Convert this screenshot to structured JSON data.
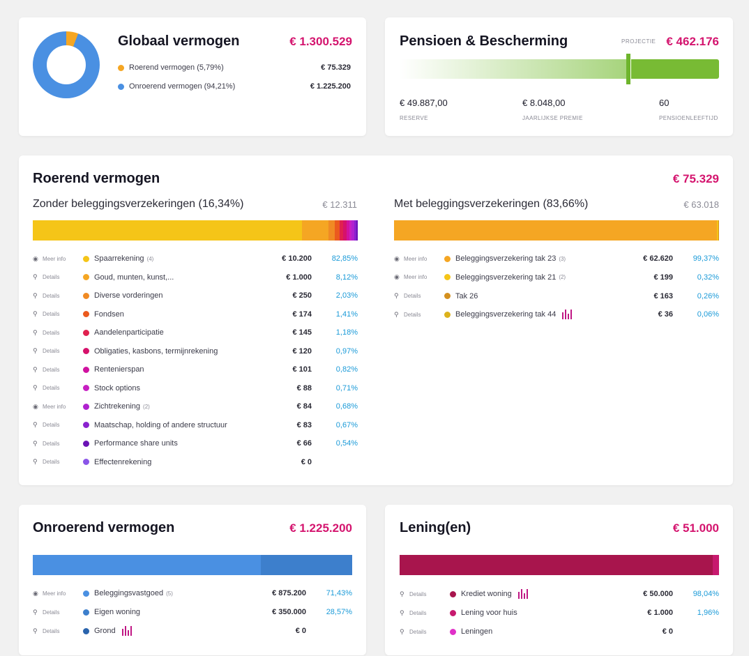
{
  "globaal": {
    "title": "Globaal vermogen",
    "total": "€ 1.300.529",
    "items": [
      {
        "label": "Roerend vermogen (5,79%)",
        "value": "€ 75.329",
        "color": "#f5a623",
        "share": 5.79
      },
      {
        "label": "Onroerend vermogen (94,21%)",
        "value": "€ 1.225.200",
        "color": "#4a90e2",
        "share": 94.21
      }
    ]
  },
  "pensioen": {
    "title": "Pensioen & Bescherming",
    "projectie_label": "PROJECTIE",
    "projectie_value": "€ 462.176",
    "stats": [
      {
        "value": "€ 49.887,00",
        "label": "RESERVE"
      },
      {
        "value": "€ 8.048,00",
        "label": "JAARLIJKSE PREMIE"
      },
      {
        "value": "60",
        "label": "PENSIOENLEEFTIJD"
      }
    ]
  },
  "roerend": {
    "title": "Roerend vermogen",
    "total": "€ 75.329",
    "zonder": {
      "title": "Zonder beleggingsverzekeringen (16,34%)",
      "total": "€ 12.311",
      "rows": [
        {
          "action": "Meer info",
          "icon": "eye-icon",
          "color": "#f5c518",
          "name": "Spaarrekening",
          "count": "(4)",
          "amount": "€ 10.200",
          "pct": "82,85%",
          "share": 82.85
        },
        {
          "action": "Details",
          "icon": "link-icon",
          "color": "#f5a623",
          "name": "Goud, munten, kunst,...",
          "count": "",
          "amount": "€ 1.000",
          "pct": "8,12%",
          "share": 8.12
        },
        {
          "action": "Details",
          "icon": "link-icon",
          "color": "#f08a24",
          "name": "Diverse vorderingen",
          "count": "",
          "amount": "€ 250",
          "pct": "2,03%",
          "share": 2.03
        },
        {
          "action": "Details",
          "icon": "link-icon",
          "color": "#eb5a1e",
          "name": "Fondsen",
          "count": "",
          "amount": "€ 174",
          "pct": "1,41%",
          "share": 1.41
        },
        {
          "action": "Details",
          "icon": "link-icon",
          "color": "#e0214f",
          "name": "Aandelenparticipatie",
          "count": "",
          "amount": "€ 145",
          "pct": "1,18%",
          "share": 1.18
        },
        {
          "action": "Details",
          "icon": "link-icon",
          "color": "#d6116b",
          "name": "Obligaties, kasbons, termijnrekening",
          "count": "",
          "amount": "€ 120",
          "pct": "0,97%",
          "share": 0.97
        },
        {
          "action": "Details",
          "icon": "link-icon",
          "color": "#d012a0",
          "name": "Rentenierspan",
          "count": "",
          "amount": "€ 101",
          "pct": "0,82%",
          "share": 0.82
        },
        {
          "action": "Details",
          "icon": "link-icon",
          "color": "#c71fc2",
          "name": "Stock options",
          "count": "",
          "amount": "€ 88",
          "pct": "0,71%",
          "share": 0.71
        },
        {
          "action": "Meer info",
          "icon": "eye-icon",
          "color": "#b022cf",
          "name": "Zichtrekening",
          "count": "(2)",
          "amount": "€ 84",
          "pct": "0,68%",
          "share": 0.68
        },
        {
          "action": "Details",
          "icon": "link-icon",
          "color": "#8a22cf",
          "name": "Maatschap, holding of andere structuur",
          "count": "",
          "amount": "€ 83",
          "pct": "0,67%",
          "share": 0.67
        },
        {
          "action": "Details",
          "icon": "link-icon",
          "color": "#6a12b5",
          "name": "Performance share units",
          "count": "",
          "amount": "€ 66",
          "pct": "0,54%",
          "share": 0.54
        },
        {
          "action": "Details",
          "icon": "link-icon",
          "color": "#8a55e8",
          "name": "Effectenrekening",
          "count": "",
          "amount": "€ 0",
          "pct": "",
          "share": 0
        }
      ]
    },
    "met": {
      "title": "Met beleggingsverzekeringen (83,66%)",
      "total": "€ 63.018",
      "rows": [
        {
          "action": "Meer info",
          "icon": "eye-icon",
          "color": "#f5a623",
          "name": "Beleggingsverzekering tak 23",
          "count": "(3)",
          "amount": "€ 62.620",
          "pct": "99,37%",
          "share": 99.37,
          "spark": false
        },
        {
          "action": "Meer info",
          "icon": "eye-icon",
          "color": "#f5c518",
          "name": "Beleggingsverzekering tak 21",
          "count": "(2)",
          "amount": "€ 199",
          "pct": "0,32%",
          "share": 0.32,
          "spark": false
        },
        {
          "action": "Details",
          "icon": "link-icon",
          "color": "#d4901e",
          "name": "Tak 26",
          "count": "",
          "amount": "€ 163",
          "pct": "0,26%",
          "share": 0.26,
          "spark": false
        },
        {
          "action": "Details",
          "icon": "link-icon",
          "color": "#dcb21c",
          "name": "Beleggingsverzekering tak 44",
          "count": "",
          "amount": "€ 36",
          "pct": "0,06%",
          "share": 0.06,
          "spark": true
        }
      ]
    }
  },
  "onroerend": {
    "title": "Onroerend vermogen",
    "total": "€ 1.225.200",
    "rows": [
      {
        "action": "Meer info",
        "icon": "eye-icon",
        "color": "#4a90e2",
        "name": "Beleggingsvastgoed",
        "count": "(5)",
        "amount": "€ 875.200",
        "pct": "71,43%",
        "share": 71.43,
        "spark": false
      },
      {
        "action": "Details",
        "icon": "link-icon",
        "color": "#3d7fcc",
        "name": "Eigen woning",
        "count": "",
        "amount": "€ 350.000",
        "pct": "28,57%",
        "share": 28.57,
        "spark": false
      },
      {
        "action": "Details",
        "icon": "link-icon",
        "color": "#2a64ad",
        "name": "Grond",
        "count": "",
        "amount": "€ 0",
        "pct": "",
        "share": 0,
        "spark": true
      }
    ]
  },
  "lening": {
    "title": "Lening(en)",
    "total": "€ 51.000",
    "rows": [
      {
        "action": "Details",
        "icon": "link-icon",
        "color": "#a8154d",
        "name": "Krediet woning",
        "count": "",
        "amount": "€ 50.000",
        "pct": "98,04%",
        "share": 98.04,
        "spark": true
      },
      {
        "action": "Details",
        "icon": "link-icon",
        "color": "#c7196e",
        "name": "Lening voor huis",
        "count": "",
        "amount": "€ 1.000",
        "pct": "1,96%",
        "share": 1.96,
        "spark": false
      },
      {
        "action": "Details",
        "icon": "link-icon",
        "color": "#e030c8",
        "name": "Leningen",
        "count": "",
        "amount": "€ 0",
        "pct": "",
        "share": 0,
        "spark": false
      }
    ]
  }
}
